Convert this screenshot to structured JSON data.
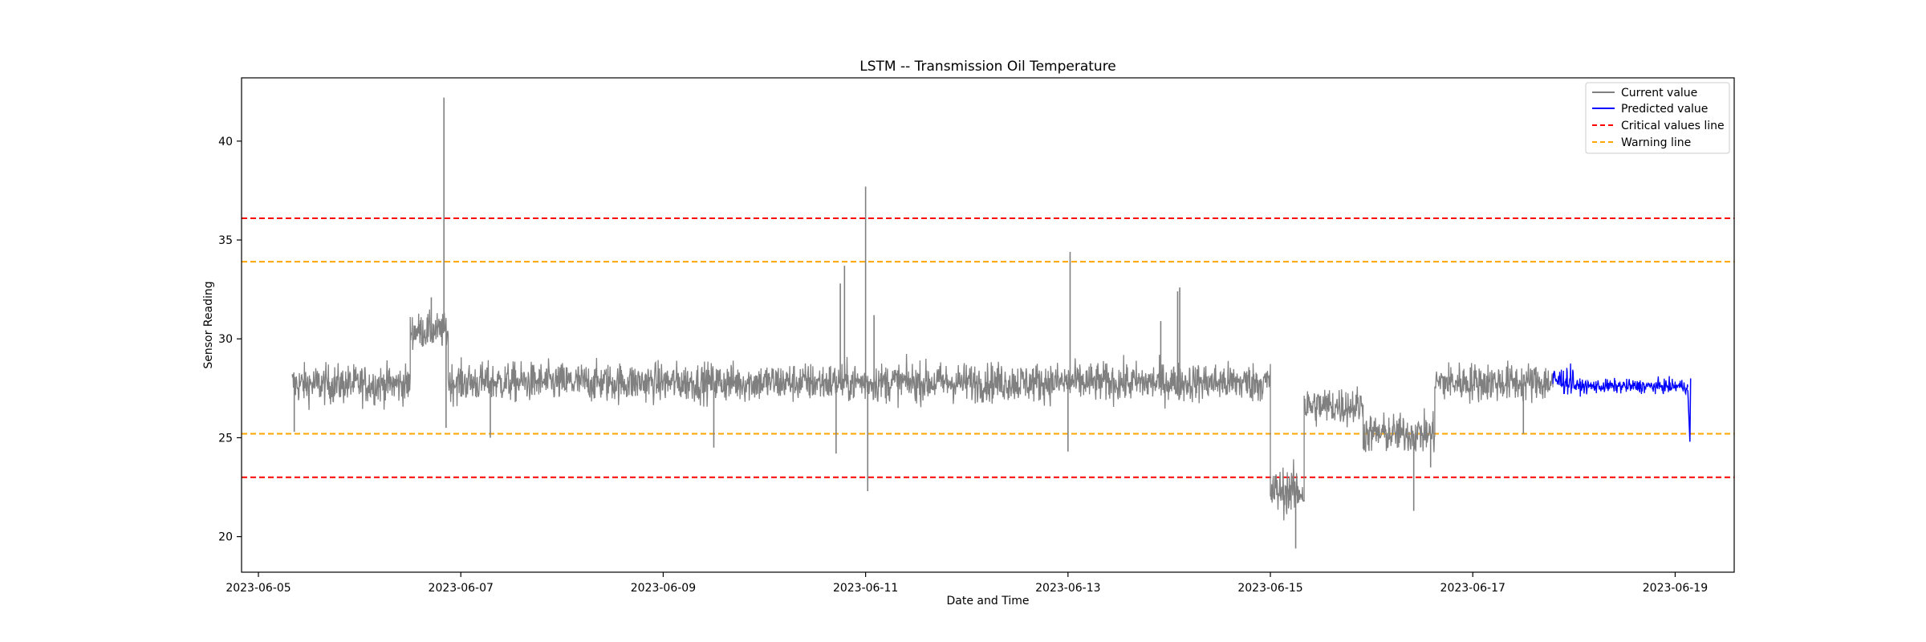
{
  "chart_data": {
    "type": "line",
    "title": "LSTM -- Transmission Oil Temperature",
    "xlabel": "Date and Time",
    "ylabel": "Sensor Reading",
    "x_ticks": [
      "2023-06-05",
      "2023-06-07",
      "2023-06-09",
      "2023-06-11",
      "2023-06-13",
      "2023-06-15",
      "2023-06-17",
      "2023-06-19"
    ],
    "y_ticks": [
      20,
      25,
      30,
      35,
      40
    ],
    "xlim": [
      "2023-06-04T20:00",
      "2023-06-19T14:00"
    ],
    "ylim": [
      18.2,
      43.2
    ],
    "grid": false,
    "legend_position": "top-right",
    "legend": [
      "Current value",
      "Predicted value",
      "Critical values line",
      "Warning line"
    ],
    "colors": {
      "current": "#808080",
      "predicted": "#0000ff",
      "critical": "#ff0000",
      "warning": "#ffa500"
    },
    "series": [
      {
        "name": "Current value",
        "color": "#808080",
        "segments": [
          {
            "start": "2023-06-05T08:00",
            "end": "2023-06-06T12:00",
            "mean": 27.7,
            "noise": 1.0
          },
          {
            "start": "2023-06-06T12:00",
            "end": "2023-06-06T21:00",
            "mean": 30.4,
            "noise": 0.9
          },
          {
            "start": "2023-06-06T21:00",
            "end": "2023-06-15T00:00",
            "mean": 27.8,
            "noise": 1.0
          },
          {
            "start": "2023-06-15T00:00",
            "end": "2023-06-15T08:00",
            "mean": 22.3,
            "noise": 1.2
          },
          {
            "start": "2023-06-15T08:00",
            "end": "2023-06-15T22:00",
            "mean": 26.6,
            "noise": 1.0
          },
          {
            "start": "2023-06-15T22:00",
            "end": "2023-06-16T15:00",
            "mean": 25.2,
            "noise": 1.0
          },
          {
            "start": "2023-06-16T15:00",
            "end": "2023-06-17T19:00",
            "mean": 27.8,
            "noise": 1.0
          }
        ],
        "spikes": [
          {
            "x": "2023-06-05T08:30",
            "y": 25.3
          },
          {
            "x": "2023-06-06T17:00",
            "y": 32.1
          },
          {
            "x": "2023-06-06T20:00",
            "y": 42.2
          },
          {
            "x": "2023-06-06T20:30",
            "y": 25.5
          },
          {
            "x": "2023-06-07T07:00",
            "y": 25.0
          },
          {
            "x": "2023-06-09T12:00",
            "y": 24.5
          },
          {
            "x": "2023-06-10T18:00",
            "y": 32.8
          },
          {
            "x": "2023-06-10T19:00",
            "y": 33.7
          },
          {
            "x": "2023-06-10T17:00",
            "y": 24.2
          },
          {
            "x": "2023-06-11T00:00",
            "y": 37.7
          },
          {
            "x": "2023-06-11T00:30",
            "y": 22.3
          },
          {
            "x": "2023-06-11T02:00",
            "y": 31.2
          },
          {
            "x": "2023-06-13T00:00",
            "y": 24.3
          },
          {
            "x": "2023-06-13T00:30",
            "y": 34.4
          },
          {
            "x": "2023-06-13T22:00",
            "y": 30.9
          },
          {
            "x": "2023-06-14T02:00",
            "y": 32.4
          },
          {
            "x": "2023-06-14T02:30",
            "y": 32.6
          },
          {
            "x": "2023-06-15T06:00",
            "y": 19.4
          },
          {
            "x": "2023-06-16T10:00",
            "y": 21.3
          },
          {
            "x": "2023-06-16T14:00",
            "y": 23.5
          },
          {
            "x": "2023-06-17T12:00",
            "y": 25.2
          }
        ]
      },
      {
        "name": "Predicted value",
        "color": "#0000ff",
        "segments": [
          {
            "start": "2023-06-17T19:00",
            "end": "2023-06-18T00:00",
            "mean": 27.9,
            "noise": 0.7
          },
          {
            "start": "2023-06-18T00:00",
            "end": "2023-06-19T03:00",
            "mean": 27.6,
            "noise": 0.35
          }
        ],
        "end_points": [
          {
            "x": "2023-06-19T03:00",
            "y": 27.4
          },
          {
            "x": "2023-06-19T03:30",
            "y": 24.8
          },
          {
            "x": "2023-06-19T03:40",
            "y": 28.0
          }
        ]
      }
    ],
    "reference_lines": [
      {
        "name": "Critical values line",
        "y": 36.1,
        "color": "#ff0000"
      },
      {
        "name": "Warning line",
        "y": 33.9,
        "color": "#ffa500"
      },
      {
        "name": "Warning line",
        "y": 25.2,
        "color": "#ffa500"
      },
      {
        "name": "Critical values line",
        "y": 23.0,
        "color": "#ff0000"
      }
    ]
  }
}
